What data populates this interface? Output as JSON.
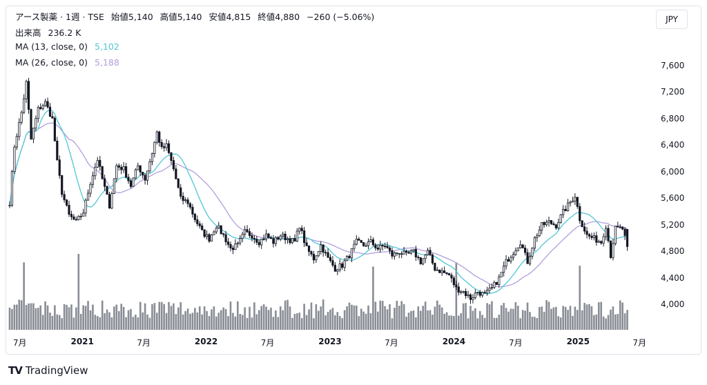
{
  "header": {
    "symbol": "アース製薬 · 1週 · TSE",
    "open_label": "始値",
    "open": "5,140",
    "high_label": "高値",
    "high": "5,140",
    "low_label": "安値",
    "low": "4,815",
    "close_label": "終値",
    "close": "4,880",
    "change": "−260 (−5.06%)"
  },
  "volume_legend": {
    "label": "出来高",
    "value": "236.2 K"
  },
  "ma13": {
    "label": "MA (13, close, 0)",
    "value": "5,102",
    "color": "#4fc6d4"
  },
  "ma26": {
    "label": "MA (26, close, 0)",
    "value": "5,188",
    "color": "#b29ddc"
  },
  "currency": "JPY",
  "brand": "TradingView",
  "chart_data": {
    "type": "candlestick",
    "ylim": [
      3850,
      7700
    ],
    "yticks": [
      "7,600",
      "7,200",
      "6,800",
      "6,400",
      "6,000",
      "5,600",
      "5,200",
      "4,800",
      "4,400",
      "4,000"
    ],
    "xticks": [
      "7月",
      "2021",
      "7月",
      "2022",
      "7月",
      "2023",
      "7月",
      "2024",
      "7月",
      "2025",
      "7月"
    ],
    "xticks_bold": [
      false,
      true,
      false,
      true,
      false,
      true,
      false,
      true,
      false,
      true,
      false
    ],
    "close_path": [
      [
        "2020-06-01",
        5550
      ],
      [
        "2020-06-15",
        6400
      ],
      [
        "2020-07-06",
        6900
      ],
      [
        "2020-07-20",
        7350
      ],
      [
        "2020-08-03",
        6500
      ],
      [
        "2020-08-24",
        6950
      ],
      [
        "2020-09-14",
        7050
      ],
      [
        "2020-10-05",
        6800
      ],
      [
        "2020-10-19",
        6150
      ],
      [
        "2020-11-02",
        5700
      ],
      [
        "2020-11-23",
        5350
      ],
      [
        "2020-12-14",
        5250
      ],
      [
        "2021-01-04",
        5400
      ],
      [
        "2021-01-25",
        5850
      ],
      [
        "2021-02-15",
        6200
      ],
      [
        "2021-03-01",
        5900
      ],
      [
        "2021-03-22",
        5500
      ],
      [
        "2021-04-12",
        6100
      ],
      [
        "2021-05-03",
        6050
      ],
      [
        "2021-05-24",
        5800
      ],
      [
        "2021-06-14",
        6100
      ],
      [
        "2021-07-05",
        5900
      ],
      [
        "2021-07-26",
        6300
      ],
      [
        "2021-08-09",
        6600
      ],
      [
        "2021-08-23",
        6350
      ],
      [
        "2021-09-06",
        6400
      ],
      [
        "2021-09-27",
        6050
      ],
      [
        "2021-10-18",
        5600
      ],
      [
        "2021-11-08",
        5550
      ],
      [
        "2021-11-29",
        5300
      ],
      [
        "2021-12-20",
        5100
      ],
      [
        "2022-01-10",
        5000
      ],
      [
        "2022-01-31",
        5200
      ],
      [
        "2022-02-21",
        5050
      ],
      [
        "2022-03-14",
        4850
      ],
      [
        "2022-04-04",
        4900
      ],
      [
        "2022-04-25",
        5100
      ],
      [
        "2022-05-16",
        5050
      ],
      [
        "2022-06-06",
        4950
      ],
      [
        "2022-06-27",
        5050
      ],
      [
        "2022-07-18",
        4950
      ],
      [
        "2022-08-08",
        5050
      ],
      [
        "2022-08-29",
        5000
      ],
      [
        "2022-09-19",
        4950
      ],
      [
        "2022-10-03",
        5200
      ],
      [
        "2022-10-24",
        4850
      ],
      [
        "2022-11-14",
        4700
      ],
      [
        "2022-12-05",
        4900
      ],
      [
        "2022-12-26",
        4700
      ],
      [
        "2023-01-16",
        4550
      ],
      [
        "2023-02-06",
        4600
      ],
      [
        "2023-02-27",
        4750
      ],
      [
        "2023-03-20",
        4950
      ],
      [
        "2023-04-10",
        4900
      ],
      [
        "2023-05-01",
        4950
      ],
      [
        "2023-05-22",
        4850
      ],
      [
        "2023-06-12",
        4900
      ],
      [
        "2023-07-03",
        4750
      ],
      [
        "2023-07-24",
        4800
      ],
      [
        "2023-08-14",
        4750
      ],
      [
        "2023-09-04",
        4800
      ],
      [
        "2023-09-25",
        4650
      ],
      [
        "2023-10-16",
        4800
      ],
      [
        "2023-11-06",
        4550
      ],
      [
        "2023-11-27",
        4500
      ],
      [
        "2023-12-18",
        4450
      ],
      [
        "2024-01-08",
        4250
      ],
      [
        "2024-01-29",
        4200
      ],
      [
        "2024-02-19",
        4100
      ],
      [
        "2024-03-11",
        4200
      ],
      [
        "2024-04-01",
        4150
      ],
      [
        "2024-04-22",
        4250
      ],
      [
        "2024-05-13",
        4400
      ],
      [
        "2024-06-03",
        4650
      ],
      [
        "2024-06-24",
        4800
      ],
      [
        "2024-07-15",
        4950
      ],
      [
        "2024-08-05",
        4650
      ],
      [
        "2024-08-26",
        5000
      ],
      [
        "2024-09-16",
        5200
      ],
      [
        "2024-10-07",
        5250
      ],
      [
        "2024-10-28",
        5200
      ],
      [
        "2024-11-18",
        5400
      ],
      [
        "2024-12-09",
        5550
      ],
      [
        "2024-12-23",
        5650
      ],
      [
        "2025-01-06",
        5300
      ],
      [
        "2025-01-27",
        5050
      ],
      [
        "2025-02-17",
        5000
      ],
      [
        "2025-03-10",
        4950
      ],
      [
        "2025-03-24",
        5200
      ],
      [
        "2025-04-07",
        4750
      ],
      [
        "2025-04-21",
        5150
      ],
      [
        "2025-05-12",
        5150
      ],
      [
        "2025-05-26",
        4880
      ]
    ],
    "last_candle": {
      "open": 5140,
      "high": 5140,
      "low": 4815,
      "close": 4880,
      "volume_k": 236.2
    },
    "volume_peaks_k": [
      [
        "2020-07-13",
        800
      ],
      [
        "2020-12-21",
        900
      ],
      [
        "2024-01-08",
        800
      ],
      [
        "2025-01-06",
        760
      ],
      [
        "2023-05-08",
        750
      ]
    ],
    "volume_typical_k": 300
  }
}
